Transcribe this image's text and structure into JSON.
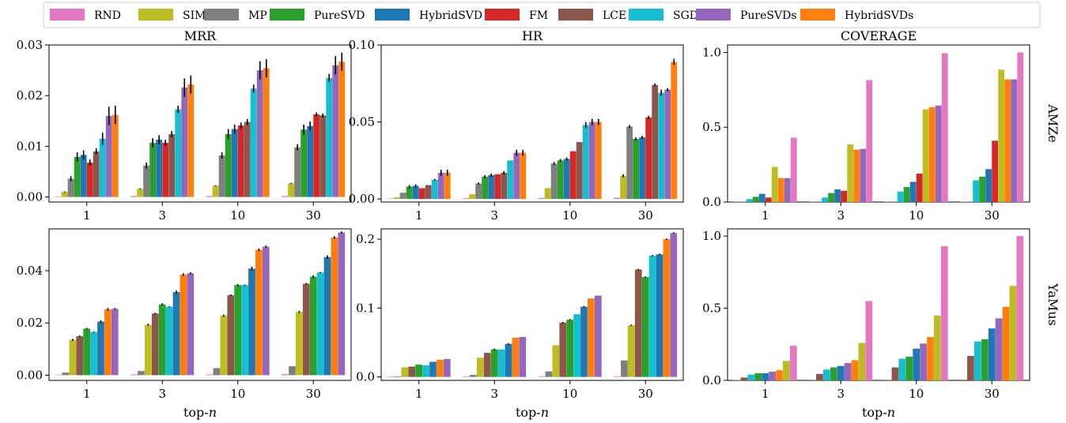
{
  "chart_data": {
    "type": "bar",
    "legend_placement": "top",
    "legend": [
      "RND",
      "SIM",
      "MP",
      "PureSVD",
      "HybridSVD",
      "FM",
      "LCE",
      "SGD",
      "PureSVDs",
      "HybridSVDs"
    ],
    "colors": {
      "RND": "#e377c2",
      "SIM": "#bcbd22",
      "MP": "#7f7f7f",
      "PureSVD": "#2ca02c",
      "HybridSVD": "#1f77b4",
      "FM": "#d62728",
      "LCE": "#8c564b",
      "SGD": "#17becf",
      "PureSVDs": "#9467bd",
      "HybridSVDs": "#ff7f0e"
    },
    "categories": [
      "1",
      "3",
      "10",
      "30"
    ],
    "column_titles": [
      "MRR",
      "HR",
      "COVERAGE"
    ],
    "row_labels": [
      "AMZe",
      "YaMus"
    ],
    "xlabel": "top-n",
    "grid": false,
    "panels": [
      {
        "metric": "MRR",
        "dataset": "AMZe",
        "ylim": [
          -0.001,
          0.03
        ],
        "yticks": [
          "0.00",
          "0.01",
          "0.02",
          "0.03"
        ],
        "ytick_values": [
          0,
          0.01,
          0.02,
          0.03
        ],
        "order": [
          "RND",
          "SIM",
          "MP",
          "PureSVD",
          "HybridSVD",
          "FM",
          "LCE",
          "SGD",
          "PureSVDs",
          "HybridSVDs"
        ],
        "values": [
          [
            0.0001,
            0.001,
            0.0036,
            0.0079,
            0.0083,
            0.0068,
            0.009,
            0.0115,
            0.016,
            0.0162
          ],
          [
            0.0002,
            0.0016,
            0.0062,
            0.0107,
            0.0113,
            0.0107,
            0.0124,
            0.0173,
            0.0216,
            0.0222
          ],
          [
            0.0002,
            0.0022,
            0.0082,
            0.0124,
            0.0134,
            0.0141,
            0.0148,
            0.0214,
            0.025,
            0.0254
          ],
          [
            0.0002,
            0.0027,
            0.0098,
            0.0133,
            0.014,
            0.0163,
            0.0161,
            0.0235,
            0.026,
            0.0267
          ]
        ],
        "errors": [
          [
            0,
            0.0001,
            0.0005,
            0.0009,
            0.0009,
            0.0006,
            0.0006,
            0.0012,
            0.0018,
            0.0018
          ],
          [
            0,
            0.0001,
            0.0006,
            0.0009,
            0.0009,
            0.0006,
            0.0006,
            0.0007,
            0.0018,
            0.0018
          ],
          [
            0,
            0.0001,
            0.0006,
            0.001,
            0.0009,
            0.0006,
            0.0006,
            0.0008,
            0.0018,
            0.0018
          ],
          [
            0,
            0.0001,
            0.0006,
            0.001,
            0.0009,
            0.0004,
            0.0004,
            0.0008,
            0.0018,
            0.0018
          ]
        ]
      },
      {
        "metric": "HR",
        "dataset": "AMZe",
        "ylim": [
          -0.002,
          0.1
        ],
        "yticks": [
          "0.00",
          "0.05",
          "0.10"
        ],
        "ytick_values": [
          0,
          0.05,
          0.1
        ],
        "order": [
          "RND",
          "SIM",
          "MP",
          "PureSVD",
          "HybridSVD",
          "FM",
          "LCE",
          "SGD",
          "PureSVDs",
          "HybridSVDs"
        ],
        "values": [
          [
            0.0003,
            0.001,
            0.004,
            0.008,
            0.0085,
            0.007,
            0.009,
            0.0125,
            0.017,
            0.017
          ],
          [
            0.0005,
            0.003,
            0.01,
            0.0145,
            0.0155,
            0.016,
            0.017,
            0.025,
            0.03,
            0.03
          ],
          [
            0.0006,
            0.007,
            0.023,
            0.025,
            0.026,
            0.031,
            0.037,
            0.048,
            0.05,
            0.05
          ],
          [
            0.0008,
            0.015,
            0.047,
            0.039,
            0.04,
            0.053,
            0.074,
            0.069,
            0.071,
            0.089
          ]
        ],
        "errors": [
          [
            0,
            0,
            0,
            0.001,
            0.001,
            0,
            0,
            0.0005,
            0.002,
            0.002
          ],
          [
            0,
            0,
            0.0007,
            0.001,
            0.001,
            0,
            0.001,
            0,
            0.002,
            0.002
          ],
          [
            0,
            0,
            0.001,
            0.001,
            0.001,
            0,
            0,
            0.002,
            0.002,
            0.002
          ],
          [
            0,
            0.001,
            0.001,
            0.001,
            0.001,
            0.001,
            0.001,
            0.002,
            0.001,
            0.002
          ]
        ]
      },
      {
        "metric": "COVERAGE",
        "dataset": "AMZe",
        "ylim": [
          0,
          1.05
        ],
        "yticks": [
          "0.0",
          "0.5",
          "1.0"
        ],
        "ytick_values": [
          0,
          0.5,
          1.0
        ],
        "order": [
          "RND",
          "MP",
          "SGD",
          "PureSVD",
          "HybridSVD",
          "FM",
          "SIM",
          "HybridSVDs",
          "PureSVDs",
          "RND"
        ],
        "values": [
          [
            0,
            0.002,
            0.02,
            0.035,
            0.055,
            0.03,
            0.235,
            0.16,
            0.16,
            0.43
          ],
          [
            0,
            0.002,
            0.03,
            0.06,
            0.085,
            0.075,
            0.385,
            0.35,
            0.355,
            0.815
          ],
          [
            0,
            0.002,
            0.07,
            0.1,
            0.135,
            0.19,
            0.62,
            0.635,
            0.645,
            0.995
          ],
          [
            0,
            0.002,
            0.145,
            0.17,
            0.22,
            0.41,
            0.885,
            0.82,
            0.82,
            1.0
          ]
        ],
        "errors": []
      },
      {
        "metric": "MRR",
        "dataset": "YaMus",
        "ylim": [
          -0.002,
          0.056
        ],
        "yticks": [
          "0.00",
          "0.02",
          "0.04"
        ],
        "ytick_values": [
          0,
          0.02,
          0.04
        ],
        "order": [
          "RND",
          "MP",
          "SIM",
          "LCE",
          "PureSVD",
          "SGD",
          "HybridSVD",
          "HybridSVDs",
          "PureSVDs"
        ],
        "values": [
          [
            0.0002,
            0.001,
            0.0135,
            0.0149,
            0.0178,
            0.0165,
            0.0205,
            0.0252,
            0.0254
          ],
          [
            0.0003,
            0.0016,
            0.0193,
            0.0236,
            0.0271,
            0.0262,
            0.0318,
            0.0385,
            0.039
          ],
          [
            0.0003,
            0.0027,
            0.0228,
            0.0306,
            0.0345,
            0.0345,
            0.0408,
            0.048,
            0.0492
          ],
          [
            0.0004,
            0.0034,
            0.0242,
            0.035,
            0.0377,
            0.0393,
            0.0452,
            0.0527,
            0.0546
          ]
        ],
        "errors": [
          [
            0,
            0,
            0.0004,
            0.0003,
            0.0003,
            0.0002,
            0.0005,
            0.0005,
            0.0003
          ],
          [
            0,
            0,
            0.0004,
            0.0003,
            0.0004,
            0.0002,
            0.0006,
            0.0005,
            0.0004
          ],
          [
            0,
            0,
            0.0004,
            0.0003,
            0.0004,
            0.0002,
            0.0007,
            0.0005,
            0.0004
          ],
          [
            0,
            0,
            0.0004,
            0.0003,
            0.0005,
            0.0002,
            0.0007,
            0.0005,
            0.0004
          ]
        ]
      },
      {
        "metric": "HR",
        "dataset": "YaMus",
        "ylim": [
          -0.005,
          0.215
        ],
        "yticks": [
          "0.0",
          "0.1",
          "0.2"
        ],
        "ytick_values": [
          0,
          0.1,
          0.2
        ],
        "order": [
          "RND",
          "MP",
          "SIM",
          "LCE",
          "PureSVD",
          "SGD",
          "HybridSVD",
          "HybridSVDs",
          "PureSVDs"
        ],
        "values": [
          [
            0.0003,
            0.001,
            0.014,
            0.015,
            0.018,
            0.017,
            0.022,
            0.025,
            0.026
          ],
          [
            0.001,
            0.003,
            0.028,
            0.035,
            0.04,
            0.04,
            0.048,
            0.057,
            0.058
          ],
          [
            0.001,
            0.008,
            0.046,
            0.079,
            0.083,
            0.091,
            0.102,
            0.114,
            0.118
          ],
          [
            0.001,
            0.024,
            0.075,
            0.156,
            0.145,
            0.176,
            0.178,
            0.2,
            0.209
          ]
        ],
        "errors": [
          [
            0,
            0,
            0,
            0,
            0,
            0,
            0,
            0,
            0
          ],
          [
            0,
            0,
            0,
            0,
            0.001,
            0,
            0.001,
            0,
            0
          ],
          [
            0,
            0,
            0,
            0.001,
            0.001,
            0,
            0.001,
            0,
            0
          ],
          [
            0,
            0,
            0.001,
            0.001,
            0.001,
            0.001,
            0.001,
            0.001,
            0.001
          ]
        ]
      },
      {
        "metric": "COVERAGE",
        "dataset": "YaMus",
        "ylim": [
          0,
          1.05
        ],
        "yticks": [
          "0.0",
          "0.5",
          "1.0"
        ],
        "ytick_values": [
          0,
          0.5,
          1.0
        ],
        "order": [
          "MP",
          "LCE",
          "SGD",
          "PureSVD",
          "HybridSVD",
          "PureSVDs",
          "HybridSVDs",
          "SIM",
          "RND"
        ],
        "values": [
          [
            0.003,
            0.02,
            0.04,
            0.05,
            0.05,
            0.06,
            0.07,
            0.135,
            0.24
          ],
          [
            0.004,
            0.045,
            0.075,
            0.09,
            0.1,
            0.12,
            0.14,
            0.26,
            0.55
          ],
          [
            0.004,
            0.09,
            0.15,
            0.165,
            0.22,
            0.255,
            0.3,
            0.45,
            0.93
          ],
          [
            0.005,
            0.17,
            0.27,
            0.285,
            0.36,
            0.43,
            0.51,
            0.655,
            1.0
          ]
        ],
        "errors": []
      }
    ]
  }
}
